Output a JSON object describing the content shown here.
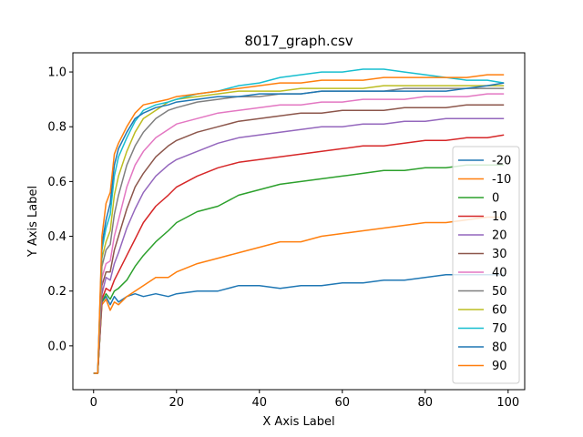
{
  "chart_data": {
    "type": "line",
    "title": "8017_graph.csv",
    "xlabel": "X Axis Label",
    "ylabel": "Y Axis Label",
    "xlim": [
      -5,
      104
    ],
    "ylim": [
      -0.16,
      1.07
    ],
    "x_ticks": [
      0,
      20,
      40,
      60,
      80,
      100
    ],
    "y_ticks": [
      0.0,
      0.2,
      0.4,
      0.6,
      0.8,
      1.0
    ],
    "x_tick_labels": [
      "0",
      "20",
      "40",
      "60",
      "80",
      "100"
    ],
    "y_tick_labels": [
      "0.0",
      "0.2",
      "0.4",
      "0.6",
      "0.8",
      "1.0"
    ],
    "grid": false,
    "legend_position": "right",
    "x": [
      0,
      1,
      2,
      3,
      4,
      5,
      6,
      8,
      10,
      12,
      15,
      18,
      20,
      25,
      30,
      35,
      40,
      45,
      50,
      55,
      60,
      65,
      70,
      75,
      80,
      85,
      90,
      95,
      99
    ],
    "series": [
      {
        "name": "-20",
        "color": "#1f77b4",
        "values": [
          -0.1,
          -0.1,
          0.16,
          0.18,
          0.15,
          0.18,
          0.16,
          0.18,
          0.19,
          0.18,
          0.19,
          0.18,
          0.19,
          0.2,
          0.2,
          0.22,
          0.22,
          0.21,
          0.22,
          0.22,
          0.23,
          0.23,
          0.24,
          0.24,
          0.25,
          0.26,
          0.26,
          0.26,
          0.26
        ]
      },
      {
        "name": "-10",
        "color": "#ff7f0e",
        "values": [
          -0.1,
          -0.1,
          0.15,
          0.17,
          0.13,
          0.16,
          0.15,
          0.18,
          0.2,
          0.22,
          0.25,
          0.25,
          0.27,
          0.3,
          0.32,
          0.34,
          0.36,
          0.38,
          0.38,
          0.4,
          0.41,
          0.42,
          0.43,
          0.44,
          0.45,
          0.45,
          0.46,
          0.47,
          0.47
        ]
      },
      {
        "name": "0",
        "color": "#2ca02c",
        "values": [
          -0.1,
          -0.1,
          0.16,
          0.19,
          0.17,
          0.2,
          0.21,
          0.24,
          0.29,
          0.33,
          0.38,
          0.42,
          0.45,
          0.49,
          0.51,
          0.55,
          0.57,
          0.59,
          0.6,
          0.61,
          0.62,
          0.63,
          0.64,
          0.64,
          0.65,
          0.65,
          0.66,
          0.66,
          0.66
        ]
      },
      {
        "name": "10",
        "color": "#d62728",
        "values": [
          -0.1,
          -0.1,
          0.17,
          0.21,
          0.2,
          0.24,
          0.27,
          0.33,
          0.39,
          0.45,
          0.51,
          0.55,
          0.58,
          0.62,
          0.65,
          0.67,
          0.68,
          0.69,
          0.7,
          0.71,
          0.72,
          0.73,
          0.73,
          0.74,
          0.75,
          0.75,
          0.76,
          0.76,
          0.77
        ]
      },
      {
        "name": "20",
        "color": "#9467bd",
        "values": [
          -0.1,
          -0.1,
          0.19,
          0.25,
          0.24,
          0.3,
          0.34,
          0.43,
          0.5,
          0.56,
          0.62,
          0.66,
          0.68,
          0.71,
          0.74,
          0.76,
          0.77,
          0.78,
          0.79,
          0.8,
          0.8,
          0.81,
          0.81,
          0.82,
          0.82,
          0.83,
          0.83,
          0.83,
          0.83
        ]
      },
      {
        "name": "30",
        "color": "#8c564b",
        "values": [
          -0.1,
          -0.1,
          0.22,
          0.27,
          0.27,
          0.35,
          0.4,
          0.5,
          0.58,
          0.63,
          0.69,
          0.73,
          0.75,
          0.78,
          0.8,
          0.82,
          0.83,
          0.84,
          0.85,
          0.85,
          0.86,
          0.86,
          0.86,
          0.87,
          0.87,
          0.87,
          0.88,
          0.88,
          0.88
        ]
      },
      {
        "name": "40",
        "color": "#e377c2",
        "values": [
          -0.1,
          -0.1,
          0.25,
          0.3,
          0.31,
          0.4,
          0.46,
          0.58,
          0.66,
          0.71,
          0.76,
          0.79,
          0.81,
          0.83,
          0.85,
          0.86,
          0.87,
          0.88,
          0.88,
          0.89,
          0.89,
          0.9,
          0.9,
          0.9,
          0.91,
          0.91,
          0.91,
          0.92,
          0.92
        ]
      },
      {
        "name": "50",
        "color": "#7f7f7f",
        "values": [
          -0.1,
          -0.1,
          0.29,
          0.35,
          0.37,
          0.48,
          0.55,
          0.66,
          0.73,
          0.78,
          0.83,
          0.86,
          0.87,
          0.89,
          0.9,
          0.91,
          0.91,
          0.92,
          0.92,
          0.93,
          0.93,
          0.93,
          0.93,
          0.94,
          0.94,
          0.94,
          0.94,
          0.94,
          0.94
        ]
      },
      {
        "name": "60",
        "color": "#bcbd22",
        "values": [
          -0.1,
          -0.1,
          0.32,
          0.38,
          0.42,
          0.55,
          0.62,
          0.71,
          0.78,
          0.83,
          0.86,
          0.89,
          0.9,
          0.91,
          0.92,
          0.93,
          0.93,
          0.93,
          0.94,
          0.94,
          0.94,
          0.94,
          0.95,
          0.95,
          0.95,
          0.95,
          0.95,
          0.95,
          0.95
        ]
      },
      {
        "name": "70",
        "color": "#17becf",
        "values": [
          -0.1,
          -0.1,
          0.35,
          0.43,
          0.48,
          0.62,
          0.69,
          0.76,
          0.82,
          0.86,
          0.88,
          0.89,
          0.9,
          0.92,
          0.93,
          0.95,
          0.96,
          0.98,
          0.99,
          1.0,
          1.0,
          1.01,
          1.01,
          1.0,
          0.99,
          0.98,
          0.97,
          0.97,
          0.96
        ]
      },
      {
        "name": "80",
        "color": "#1f77b4",
        "values": [
          -0.1,
          -0.1,
          0.37,
          0.46,
          0.52,
          0.66,
          0.72,
          0.78,
          0.83,
          0.85,
          0.87,
          0.88,
          0.89,
          0.9,
          0.91,
          0.91,
          0.92,
          0.92,
          0.92,
          0.93,
          0.93,
          0.93,
          0.93,
          0.93,
          0.93,
          0.93,
          0.94,
          0.95,
          0.96
        ]
      },
      {
        "name": "90",
        "color": "#ff7f0e",
        "values": [
          -0.1,
          -0.1,
          0.4,
          0.52,
          0.56,
          0.7,
          0.74,
          0.8,
          0.85,
          0.88,
          0.89,
          0.9,
          0.91,
          0.92,
          0.93,
          0.94,
          0.95,
          0.96,
          0.96,
          0.97,
          0.97,
          0.97,
          0.98,
          0.98,
          0.98,
          0.98,
          0.98,
          0.99,
          0.99
        ]
      }
    ]
  }
}
